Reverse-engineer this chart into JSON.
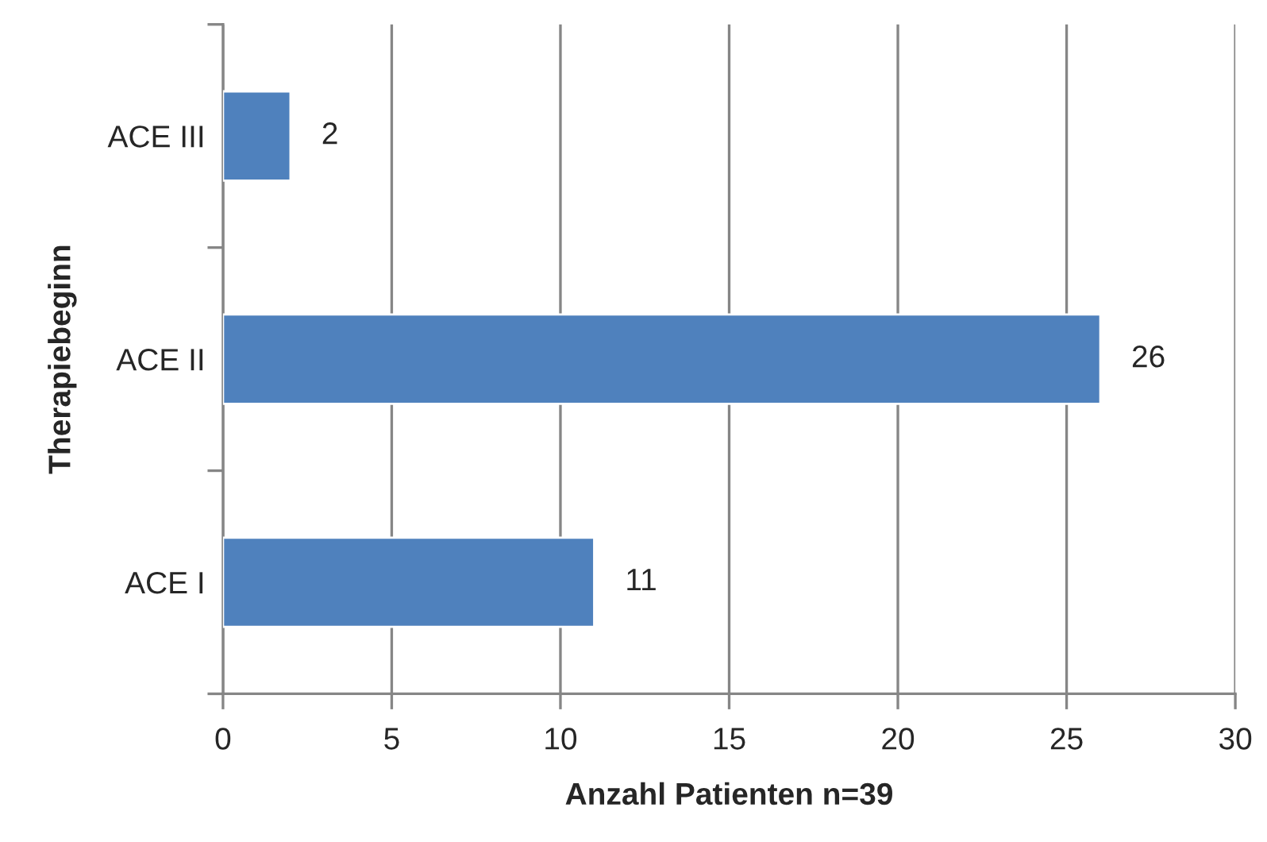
{
  "chart_data": {
    "type": "bar",
    "orientation": "horizontal",
    "categories": [
      "ACE III",
      "ACE II",
      "ACE I"
    ],
    "values": [
      2,
      26,
      11
    ],
    "color": "#4f81bd",
    "xlabel": "Anzahl Patienten n=39",
    "ylabel": "Therapiebeginn",
    "xlim": [
      0,
      30
    ],
    "xticks": [
      0,
      5,
      10,
      15,
      20,
      25,
      30
    ],
    "grid": "x",
    "data_labels": true
  }
}
